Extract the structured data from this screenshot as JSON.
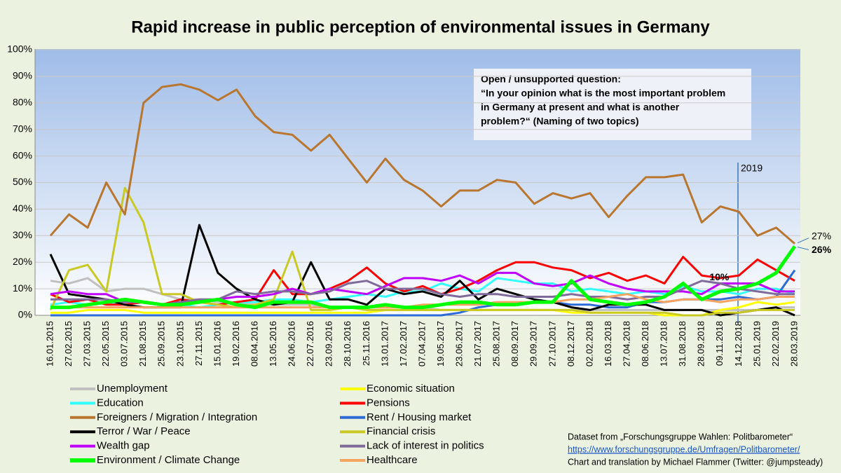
{
  "chart_data": {
    "type": "line",
    "title": "Rapid increase in public perception of environmental issues in Germany",
    "categories": [
      "16.01.2015",
      "27.02.2015",
      "27.03.2015",
      "22.05.2015",
      "03.07.2015",
      "21.08.2015",
      "25.09.2015",
      "23.10.2015",
      "27.11.2015",
      "15.01.2016",
      "19.02.2016",
      "08.04.2016",
      "13.05.2016",
      "24.06.2016",
      "22.07.2016",
      "23.09.2016",
      "28.10.2016",
      "25.11.2016",
      "13.01.2017",
      "17.02.2017",
      "07.04.2017",
      "19.05.2017",
      "23.06.2017",
      "21.07.2017",
      "25.08.2017",
      "08.09.2017",
      "29.09.2017",
      "27.10.2017",
      "08.12.2017",
      "02.02.2018",
      "16.03.2018",
      "27.04.2018",
      "08.06.2018",
      "13.07.2018",
      "31.08.2018",
      "28.09.2018",
      "09.11.2018",
      "14.12.2018",
      "25.01.2019",
      "22.02.2019",
      "28.03.2019"
    ],
    "ylim": [
      0,
      100
    ],
    "yticks": [
      {
        "value": 0,
        "label": "0%"
      },
      {
        "value": 10,
        "label": "10%"
      },
      {
        "value": 20,
        "label": "20%"
      },
      {
        "value": 30,
        "label": "30%"
      },
      {
        "value": 40,
        "label": "40%"
      },
      {
        "value": 50,
        "label": "50%"
      },
      {
        "value": 60,
        "label": "60%"
      },
      {
        "value": 70,
        "label": "70%"
      },
      {
        "value": 80,
        "label": "80%"
      },
      {
        "value": 90,
        "label": "90%"
      },
      {
        "value": 100,
        "label": "100%"
      }
    ],
    "grid": true,
    "series": [
      {
        "name": "Unemployment",
        "color": "#c0c0c0",
        "values": [
          13,
          12,
          14,
          9,
          10,
          10,
          8,
          6,
          6,
          5,
          5,
          4,
          4,
          4,
          4,
          3,
          3,
          3,
          3,
          3,
          3,
          2,
          2,
          2,
          2,
          2,
          2,
          2,
          2,
          2,
          2,
          2,
          2,
          2,
          2,
          2,
          2,
          2,
          2,
          3,
          3
        ]
      },
      {
        "name": "Economic situation",
        "color": "#ffff00",
        "values": [
          1,
          1,
          2,
          2,
          2,
          1,
          1,
          1,
          1,
          1,
          1,
          1,
          1,
          1,
          1,
          1,
          1,
          1,
          2,
          2,
          2,
          2,
          2,
          2,
          2,
          2,
          2,
          2,
          1,
          1,
          1,
          1,
          1,
          0,
          0,
          0,
          2,
          3,
          5,
          4,
          5
        ]
      },
      {
        "name": "Education",
        "color": "#33ffff",
        "values": [
          4,
          5,
          4,
          5,
          4,
          3,
          3,
          4,
          3,
          4,
          5,
          5,
          6,
          6,
          5,
          6,
          7,
          8,
          7,
          9,
          9,
          12,
          10,
          9,
          14,
          13,
          12,
          12,
          9,
          10,
          9,
          8,
          9,
          8,
          11,
          9,
          9,
          8,
          10,
          10,
          8
        ]
      },
      {
        "name": "Pensions",
        "color": "#ff0000",
        "values": [
          8,
          5,
          6,
          4,
          4,
          5,
          4,
          6,
          5,
          4,
          5,
          6,
          17,
          8,
          8,
          10,
          13,
          18,
          12,
          9,
          11,
          8,
          10,
          13,
          17,
          20,
          20,
          18,
          17,
          14,
          16,
          13,
          15,
          12,
          22,
          15,
          14,
          15,
          21,
          17,
          13
        ]
      },
      {
        "name": "Foreigners / Migration / Integration",
        "color": "#b8762f",
        "values": [
          30,
          38,
          33,
          50,
          38,
          80,
          86,
          87,
          85,
          81,
          85,
          75,
          69,
          68,
          62,
          68,
          59,
          50,
          59,
          51,
          47,
          41,
          47,
          47,
          51,
          50,
          42,
          46,
          44,
          46,
          37,
          45,
          52,
          52,
          53,
          35,
          41,
          39,
          30,
          33,
          27
        ],
        "value_labels": [
          null,
          null,
          null,
          null,
          null,
          null,
          null,
          null,
          null,
          null,
          null,
          null,
          null,
          null,
          null,
          null,
          null,
          null,
          null,
          null,
          null,
          null,
          null,
          null,
          null,
          null,
          null,
          null,
          null,
          null,
          null,
          null,
          null,
          null,
          null,
          null,
          null,
          null,
          null,
          null,
          "27%"
        ]
      },
      {
        "name": "Rent / Housing market",
        "color": "#2e6bd6",
        "values": [
          0,
          0,
          0,
          0,
          0,
          0,
          0,
          0,
          0,
          0,
          0,
          0,
          0,
          0,
          0,
          0,
          0,
          0,
          0,
          0,
          0,
          0,
          1,
          3,
          4,
          4,
          5,
          5,
          4,
          4,
          3,
          3,
          5,
          5,
          6,
          6,
          6,
          7,
          6,
          7,
          17
        ]
      },
      {
        "name": "Terror / War / Peace",
        "color": "#000000",
        "values": [
          23,
          8,
          7,
          6,
          4,
          3,
          3,
          3,
          34,
          16,
          10,
          6,
          4,
          5,
          20,
          6,
          6,
          4,
          10,
          8,
          9,
          7,
          13,
          6,
          10,
          8,
          6,
          5,
          3,
          2,
          4,
          4,
          4,
          2,
          2,
          2,
          0,
          1,
          2,
          3,
          0
        ]
      },
      {
        "name": "Financial crisis",
        "color": "#c9c923",
        "values": [
          2,
          17,
          19,
          9,
          48,
          35,
          8,
          8,
          5,
          4,
          3,
          4,
          6,
          24,
          2,
          2,
          3,
          2,
          2,
          2,
          2,
          2,
          2,
          2,
          2,
          2,
          2,
          2,
          2,
          1,
          1,
          1,
          1,
          1,
          0,
          0,
          1,
          1,
          2,
          2,
          2
        ]
      },
      {
        "name": "Wealth gap",
        "color": "#c000ff",
        "values": [
          8,
          9,
          8,
          8,
          5,
          5,
          4,
          5,
          5,
          6,
          7,
          7,
          8,
          10,
          8,
          10,
          9,
          8,
          11,
          14,
          14,
          13,
          15,
          12,
          16,
          16,
          12,
          11,
          12,
          15,
          12,
          10,
          9,
          9,
          9,
          8,
          12,
          12,
          12,
          9,
          9
        ]
      },
      {
        "name": "Lack of interest in politics",
        "color": "#7f6a9a",
        "values": [
          6,
          6,
          6,
          6,
          5,
          5,
          4,
          5,
          6,
          6,
          9,
          8,
          9,
          9,
          8,
          9,
          12,
          13,
          10,
          10,
          10,
          8,
          7,
          8,
          8,
          7,
          7,
          7,
          8,
          7,
          7,
          6,
          7,
          7,
          10,
          13,
          12,
          10,
          9,
          8,
          8
        ]
      },
      {
        "name": "Environment / Climate Change",
        "color": "#00ff00",
        "values": [
          3,
          3,
          4,
          5,
          6,
          5,
          4,
          4,
          5,
          6,
          4,
          3,
          5,
          5,
          5,
          3,
          3,
          3,
          4,
          3,
          3,
          4,
          5,
          5,
          4,
          4,
          5,
          5,
          13,
          6,
          5,
          4,
          5,
          7,
          12,
          6,
          9,
          10,
          12,
          16,
          26
        ],
        "value_labels": [
          null,
          null,
          null,
          null,
          null,
          null,
          null,
          null,
          null,
          null,
          null,
          null,
          null,
          null,
          null,
          null,
          null,
          null,
          null,
          null,
          null,
          null,
          null,
          null,
          null,
          null,
          null,
          null,
          null,
          null,
          null,
          null,
          null,
          null,
          null,
          null,
          null,
          "10%",
          null,
          null,
          "26%"
        ]
      },
      {
        "name": "Healthcare",
        "color": "#f4a460",
        "values": [
          3,
          3,
          3,
          3,
          3,
          3,
          3,
          3,
          3,
          3,
          3,
          3,
          3,
          3,
          3,
          3,
          3,
          3,
          3,
          3,
          4,
          4,
          4,
          4,
          5,
          5,
          5,
          5,
          6,
          6,
          7,
          8,
          6,
          5,
          6,
          6,
          5,
          6,
          6,
          7,
          7
        ]
      }
    ],
    "annotations": {
      "year_marker": "2019",
      "question": [
        "Open / unsupported question:",
        "“In your opinion what is the most important problem",
        "in Germany at present and what is another",
        "problem?“ (Naming of two topics)"
      ],
      "source": [
        "Dataset from „Forschungsgruppe Wahlen: Politbarometer“",
        "https://www.forschungsgruppe.de/Umfragen/Politbarometer/",
        "Chart and translation by Michael Flammer  (Twitter: @jumpsteady)"
      ]
    }
  }
}
